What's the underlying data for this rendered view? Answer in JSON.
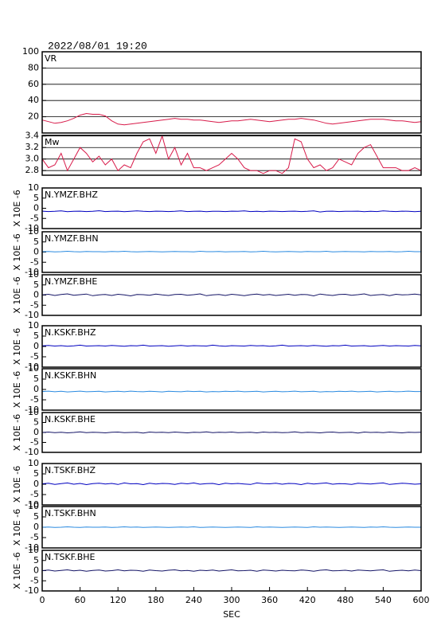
{
  "chart_data": {
    "type": "line",
    "title": "2022/08/01 19:20",
    "xlabel": "SEC",
    "x": [
      0,
      10,
      20,
      30,
      40,
      50,
      60,
      70,
      80,
      90,
      100,
      110,
      120,
      130,
      140,
      150,
      160,
      170,
      180,
      190,
      200,
      210,
      220,
      230,
      240,
      250,
      260,
      270,
      280,
      290,
      300,
      310,
      320,
      330,
      340,
      350,
      360,
      370,
      380,
      390,
      400,
      410,
      420,
      430,
      440,
      450,
      460,
      470,
      480,
      490,
      500,
      510,
      520,
      530,
      540,
      550,
      560,
      570,
      580,
      590,
      600
    ],
    "xlim": [
      0,
      600
    ],
    "xticks": [
      0,
      60,
      120,
      180,
      240,
      300,
      360,
      420,
      480,
      540,
      600
    ],
    "panels": [
      {
        "label": "VR",
        "color": "#d81b4a",
        "grid": true,
        "ylim": [
          0,
          100
        ],
        "yticks": [
          20,
          40,
          60,
          80,
          100
        ],
        "values": [
          16,
          14,
          12,
          13,
          15,
          18,
          22,
          24,
          23,
          23,
          21,
          15,
          11,
          10,
          11,
          12,
          13,
          14,
          15,
          16,
          17,
          18,
          17,
          17,
          16,
          16,
          15,
          14,
          13,
          14,
          15,
          15,
          16,
          17,
          16,
          15,
          14,
          15,
          16,
          17,
          17,
          18,
          17,
          16,
          14,
          12,
          11,
          12,
          13,
          14,
          15,
          16,
          17,
          17,
          17,
          16,
          15,
          15,
          14,
          13,
          14
        ]
      },
      {
        "label": "Mw",
        "color": "#d81b4a",
        "grid": true,
        "ylim": [
          2.72,
          3.41
        ],
        "yticks": [
          2.8,
          {
            "value": 3,
            "label": "3.0"
          },
          3.2,
          3.4
        ],
        "values": [
          3.0,
          2.85,
          2.9,
          3.1,
          2.8,
          3.0,
          3.2,
          3.1,
          2.95,
          3.05,
          2.9,
          3.0,
          2.8,
          2.9,
          2.85,
          3.1,
          3.3,
          3.35,
          3.1,
          3.4,
          3.0,
          3.2,
          2.9,
          3.1,
          2.85,
          2.85,
          2.8,
          2.85,
          2.9,
          3.0,
          3.1,
          3.0,
          2.85,
          2.8,
          2.8,
          2.75,
          2.8,
          2.8,
          2.75,
          2.85,
          3.35,
          3.3,
          3.0,
          2.85,
          2.9,
          2.8,
          2.85,
          3.0,
          2.95,
          2.9,
          3.1,
          3.2,
          3.25,
          3.05,
          2.85,
          2.85,
          2.85,
          2.8,
          2.8,
          2.85,
          2.8
        ]
      },
      {
        "label": "N.YMZF.BHZ",
        "ylabel": "X 10E -6",
        "color": "#0000c0",
        "ylim": [
          -10,
          10
        ],
        "yticks": [
          -10,
          -5,
          0,
          5,
          10
        ],
        "values": [
          -1.4,
          -1.6,
          -1.5,
          -1.3,
          -1.7,
          -1.5,
          -1.4,
          -1.6,
          -1.5,
          -1.2,
          -1.6,
          -1.5,
          -1.4,
          -1.7,
          -1.5,
          -1.3,
          -1.5,
          -1.6,
          -1.4,
          -1.5,
          -1.6,
          -1.5,
          -1.3,
          -1.6,
          -1.5,
          -1.4,
          -1.7,
          -1.5,
          -1.5,
          -1.6,
          -1.4,
          -1.5,
          -1.3,
          -1.6,
          -1.5,
          -1.7,
          -1.4,
          -1.5,
          -1.6,
          -1.5,
          -1.4,
          -1.6,
          -1.5,
          -1.3,
          -1.8,
          -1.5,
          -1.4,
          -1.6,
          -1.5,
          -1.5,
          -1.4,
          -1.7,
          -1.5,
          -1.6,
          -1.3,
          -1.5,
          -1.6,
          -1.4,
          -1.5,
          -1.7,
          -1.5
        ]
      },
      {
        "label": "N.YMZF.BHN",
        "ylabel": "X 10E -6",
        "color": "#2a8ae0",
        "ylim": [
          -10,
          10
        ],
        "yticks": [
          -10,
          -5,
          0,
          5,
          10
        ],
        "values": [
          0.2,
          0.3,
          0.1,
          0.2,
          0.4,
          0.2,
          0.1,
          0.3,
          0.2,
          0.2,
          0.1,
          0.3,
          0.2,
          0.4,
          0.2,
          0.1,
          0.2,
          0.3,
          0.2,
          0.1,
          0.2,
          0.3,
          0.2,
          0.2,
          0.1,
          0.4,
          0.2,
          0.2,
          0.3,
          0.1,
          0.2,
          0.2,
          0.3,
          0.1,
          0.2,
          0.4,
          0.2,
          0.1,
          0.2,
          0.3,
          0.2,
          0.1,
          0.3,
          0.2,
          0.2,
          0.4,
          0.1,
          0.2,
          0.3,
          0.2,
          0.2,
          0.1,
          0.3,
          0.2,
          0.2,
          0.3,
          0.1,
          0.2,
          0.4,
          0.2,
          0.2
        ]
      },
      {
        "label": "N.YMZF.BHE",
        "ylabel": "X 10E -6",
        "color": "#141466",
        "ylim": [
          -10,
          10
        ],
        "yticks": [
          -10,
          -5,
          0,
          5,
          10
        ],
        "values": [
          0.1,
          0.4,
          -0.2,
          0.3,
          0.6,
          -0.1,
          0.2,
          0.5,
          -0.3,
          0.1,
          0.3,
          -0.2,
          0.4,
          0.1,
          -0.4,
          0.3,
          0.2,
          -0.1,
          0.5,
          0.1,
          -0.2,
          0.3,
          0.4,
          -0.1,
          0.2,
          0.6,
          -0.3,
          0.1,
          0.3,
          -0.2,
          0.4,
          0.1,
          -0.3,
          0.2,
          0.5,
          0.0,
          0.3,
          -0.2,
          0.1,
          0.4,
          -0.1,
          0.3,
          0.2,
          -0.4,
          0.5,
          0.1,
          -0.2,
          0.3,
          0.4,
          -0.1,
          0.2,
          0.6,
          -0.2,
          0.1,
          0.3,
          -0.3,
          0.4,
          0.1,
          0.2,
          0.5,
          0.1
        ]
      },
      {
        "label": "N.KSKF.BHZ",
        "ylabel": "X 10E -6",
        "color": "#0000c0",
        "ylim": [
          -10,
          10
        ],
        "yticks": [
          -10,
          -5,
          0,
          5,
          10
        ],
        "values": [
          0.3,
          0.5,
          0.2,
          0.4,
          0.1,
          0.3,
          0.6,
          0.2,
          0.3,
          0.4,
          0.2,
          0.5,
          0.3,
          0.1,
          0.4,
          0.3,
          0.6,
          0.2,
          0.3,
          0.4,
          0.1,
          0.3,
          0.5,
          0.2,
          0.4,
          0.3,
          0.2,
          0.6,
          0.3,
          0.1,
          0.4,
          0.3,
          0.2,
          0.5,
          0.3,
          0.4,
          0.1,
          0.3,
          0.6,
          0.2,
          0.3,
          0.4,
          0.2,
          0.5,
          0.3,
          0.1,
          0.4,
          0.3,
          0.6,
          0.2,
          0.3,
          0.4,
          0.1,
          0.3,
          0.5,
          0.2,
          0.4,
          0.3,
          0.2,
          0.5,
          0.3
        ]
      },
      {
        "label": "N.KSKF.BHN",
        "ylabel": "X 10E -6",
        "color": "#2a8ae0",
        "ylim": [
          -10,
          10
        ],
        "yticks": [
          -10,
          -5,
          0,
          5,
          10
        ],
        "values": [
          -1.0,
          -0.8,
          -1.1,
          -0.9,
          -1.2,
          -1.0,
          -0.8,
          -1.1,
          -1.0,
          -0.9,
          -1.2,
          -1.0,
          -0.9,
          -1.1,
          -0.8,
          -1.0,
          -1.1,
          -0.9,
          -1.0,
          -1.2,
          -0.9,
          -1.0,
          -1.1,
          -0.8,
          -1.0,
          -0.9,
          -1.2,
          -1.0,
          -1.1,
          -0.9,
          -1.0,
          -0.8,
          -1.1,
          -1.0,
          -0.9,
          -1.2,
          -1.0,
          -0.9,
          -1.1,
          -1.0,
          -0.8,
          -1.1,
          -1.0,
          -0.9,
          -1.2,
          -1.0,
          -1.1,
          -0.9,
          -1.0,
          -0.8,
          -1.1,
          -1.0,
          -0.9,
          -1.2,
          -1.0,
          -0.9,
          -1.1,
          -1.0,
          -0.8,
          -1.0,
          -1.0
        ]
      },
      {
        "label": "N.KSKF.BHE",
        "ylabel": "X 10E -6",
        "color": "#141466",
        "ylim": [
          -10,
          10
        ],
        "yticks": [
          -10,
          -5,
          0,
          5,
          10
        ],
        "values": [
          0.0,
          0.2,
          -0.1,
          0.1,
          -0.2,
          0.0,
          0.3,
          -0.1,
          0.1,
          0.0,
          -0.2,
          0.1,
          0.2,
          -0.1,
          0.0,
          0.1,
          -0.3,
          0.2,
          0.0,
          0.1,
          -0.1,
          0.2,
          0.0,
          -0.2,
          0.1,
          0.0,
          0.3,
          -0.1,
          0.1,
          0.0,
          0.2,
          -0.1,
          0.0,
          0.1,
          -0.2,
          0.2,
          0.0,
          0.1,
          -0.1,
          0.0,
          0.3,
          -0.1,
          0.1,
          0.0,
          -0.2,
          0.1,
          0.2,
          -0.1,
          0.0,
          0.1,
          -0.3,
          0.2,
          0.0,
          0.1,
          -0.1,
          0.2,
          0.0,
          -0.2,
          0.1,
          0.0,
          0.1
        ]
      },
      {
        "label": "N.TSKF.BHZ",
        "ylabel": "X 10E -6",
        "color": "#0000c0",
        "ylim": [
          -10,
          10
        ],
        "yticks": [
          -10,
          -5,
          0,
          5,
          10
        ],
        "values": [
          0.2,
          0.5,
          -0.1,
          0.3,
          0.6,
          0.0,
          0.4,
          -0.2,
          0.3,
          0.5,
          0.1,
          0.4,
          -0.1,
          0.6,
          0.2,
          0.3,
          -0.2,
          0.5,
          0.1,
          0.4,
          0.3,
          -0.1,
          0.5,
          0.2,
          0.6,
          0.0,
          0.3,
          0.4,
          -0.2,
          0.5,
          0.2,
          0.4,
          0.1,
          -0.1,
          0.6,
          0.3,
          0.2,
          0.5,
          0.0,
          0.4,
          0.3,
          -0.2,
          0.5,
          0.1,
          0.4,
          0.6,
          0.0,
          0.3,
          0.2,
          -0.1,
          0.5,
          0.3,
          0.1,
          0.4,
          0.6,
          -0.1,
          0.2,
          0.5,
          0.3,
          0.0,
          0.2
        ]
      },
      {
        "label": "N.TSKF.BHN",
        "ylabel": "X 10E -6",
        "color": "#2a8ae0",
        "ylim": [
          -10,
          10
        ],
        "yticks": [
          -10,
          -5,
          0,
          5,
          10
        ],
        "values": [
          0.0,
          0.1,
          -0.1,
          0.0,
          0.2,
          0.0,
          -0.1,
          0.1,
          0.0,
          0.0,
          0.1,
          -0.1,
          0.0,
          0.2,
          0.0,
          0.1,
          -0.1,
          0.0,
          0.1,
          0.0,
          -0.1,
          0.0,
          0.1,
          0.0,
          0.2,
          -0.1,
          0.0,
          0.1,
          0.0,
          -0.1,
          0.0,
          0.1,
          0.0,
          -0.1,
          0.2,
          0.0,
          0.1,
          0.0,
          -0.1,
          0.0,
          0.1,
          0.0,
          -0.1,
          0.2,
          0.0,
          0.1,
          0.0,
          -0.1,
          0.0,
          0.1,
          0.0,
          -0.1,
          0.1,
          0.0,
          0.2,
          0.0,
          -0.1,
          0.0,
          0.1,
          0.0,
          0.0
        ]
      },
      {
        "label": "N.TSKF.BHE",
        "ylabel": "X 10E -6",
        "color": "#141466",
        "ylim": [
          -10,
          10
        ],
        "yticks": [
          -10,
          -5,
          0,
          5,
          10
        ],
        "values": [
          0.0,
          0.3,
          -0.2,
          0.1,
          0.4,
          -0.1,
          0.2,
          -0.3,
          0.1,
          0.3,
          -0.2,
          0.0,
          0.4,
          -0.1,
          0.2,
          0.1,
          -0.3,
          0.3,
          0.0,
          -0.2,
          0.2,
          0.4,
          -0.1,
          0.1,
          -0.3,
          0.2,
          0.0,
          0.3,
          -0.2,
          0.1,
          0.4,
          -0.1,
          0.0,
          0.2,
          -0.3,
          0.3,
          0.1,
          -0.2,
          0.2,
          0.0,
          -0.1,
          0.3,
          0.1,
          -0.3,
          0.2,
          0.4,
          -0.1,
          0.0,
          0.2,
          -0.2,
          0.3,
          0.1,
          -0.1,
          0.2,
          0.4,
          -0.3,
          0.0,
          0.2,
          -0.1,
          0.3,
          0.0
        ]
      }
    ]
  }
}
